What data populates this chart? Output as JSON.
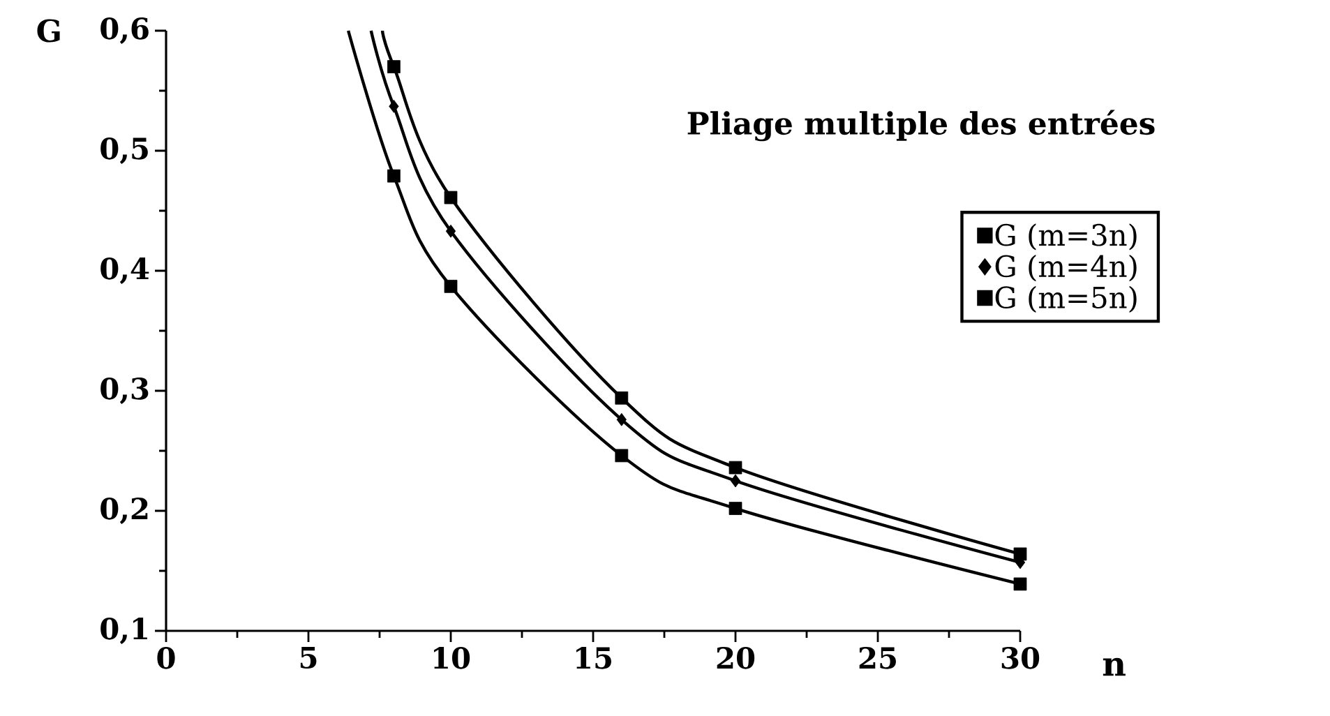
{
  "chart_data": {
    "type": "scatter",
    "title": "Pliage multiple des entrées",
    "xlabel": "n",
    "ylabel": "G",
    "x": [
      8,
      10,
      16,
      20,
      30
    ],
    "series": [
      {
        "name": "G (m=3n)",
        "color": "#000000",
        "marker": "square",
        "values": [
          0.479,
          0.387,
          0.246,
          0.202,
          0.139
        ]
      },
      {
        "name": "G (m=4n)",
        "color": "#000000",
        "marker": "diamond",
        "values": [
          0.537,
          0.433,
          0.276,
          0.225,
          0.157
        ]
      },
      {
        "name": "G (m=5n)",
        "color": "#000000",
        "marker": "square",
        "values": [
          0.57,
          0.461,
          0.294,
          0.236,
          0.164
        ]
      },
      {
        "type": "line",
        "color": "#000000",
        "marker": "none",
        "x": [
          6.4,
          8,
          10,
          16,
          20,
          30
        ],
        "values": [
          0.6,
          0.479,
          0.387,
          0.246,
          0.202,
          0.139
        ]
      },
      {
        "type": "line",
        "color": "#000000",
        "marker": "none",
        "x": [
          7.2,
          8,
          10,
          16,
          20,
          30
        ],
        "values": [
          0.6,
          0.537,
          0.433,
          0.276,
          0.225,
          0.157
        ]
      },
      {
        "type": "line",
        "color": "#000000",
        "marker": "none",
        "x": [
          7.6,
          8,
          10,
          16,
          20,
          30
        ],
        "values": [
          0.6,
          0.57,
          0.461,
          0.294,
          0.236,
          0.164
        ]
      }
    ],
    "xlim": [
      0,
      30
    ],
    "xticks": [
      0,
      5,
      10,
      15,
      20,
      25,
      30
    ],
    "ylim": [
      0.1,
      0.6
    ],
    "yticks": [
      {
        "value": 0.1,
        "label": "0,1"
      },
      {
        "value": 0.2,
        "label": "0,2"
      },
      {
        "value": 0.3,
        "label": "0,3"
      },
      {
        "value": 0.4,
        "label": "0,4"
      },
      {
        "value": 0.5,
        "label": "0,5"
      },
      {
        "value": 0.6,
        "label": "0,6"
      }
    ],
    "grid": false,
    "legend": "right"
  }
}
